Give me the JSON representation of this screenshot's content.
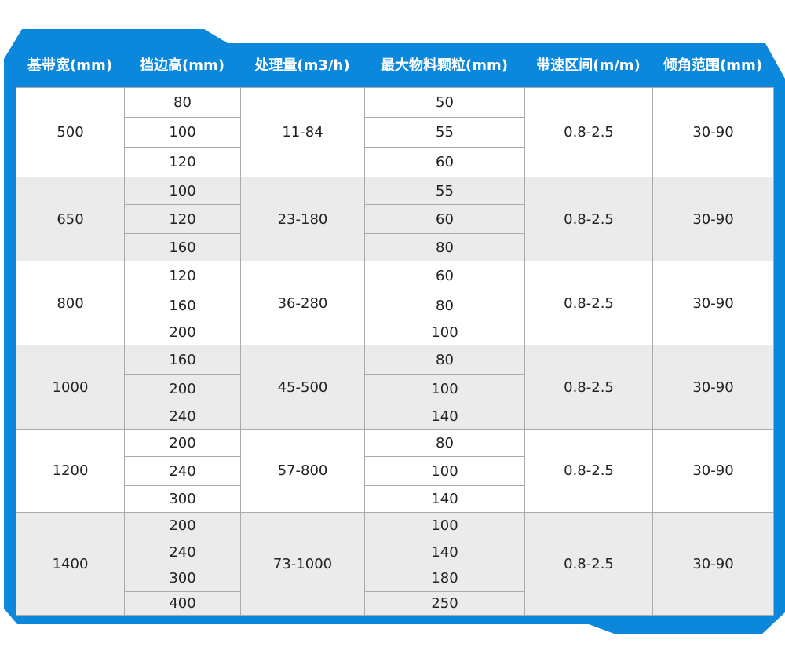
{
  "headers": [
    "基带宽(mm)",
    "挡边高(mm)",
    "处理量(m3/h)",
    "最大物料颗粒(mm)",
    "带速区间(m/m)",
    "倾角范围(mm)"
  ],
  "groups": [
    {
      "width": "500",
      "edge": [
        "80",
        "100",
        "120"
      ],
      "capacity": "11-84",
      "particle": [
        "50",
        "55",
        "60"
      ],
      "speed": "0.8-2.5",
      "angle": "30-90"
    },
    {
      "width": "650",
      "edge": [
        "100",
        "120",
        "160"
      ],
      "capacity": "23-180",
      "particle": [
        "55",
        "60",
        "80"
      ],
      "speed": "0.8-2.5",
      "angle": "30-90"
    },
    {
      "width": "800",
      "edge": [
        "120",
        "160",
        "200"
      ],
      "capacity": "36-280",
      "particle": [
        "60",
        "80",
        "100"
      ],
      "speed": "0.8-2.5",
      "angle": "30-90"
    },
    {
      "width": "1000",
      "edge": [
        "160",
        "200",
        "240"
      ],
      "capacity": "45-500",
      "particle": [
        "80",
        "100",
        "140"
      ],
      "speed": "0.8-2.5",
      "angle": "30-90"
    },
    {
      "width": "1200",
      "edge": [
        "200",
        "240",
        "300"
      ],
      "capacity": "57-800",
      "particle": [
        "80",
        "100",
        "140"
      ],
      "speed": "0.8-2.5",
      "angle": "30-90"
    },
    {
      "width": "1400",
      "edge": [
        "200",
        "240",
        "300",
        "400"
      ],
      "capacity": "73-1000",
      "particle": [
        "100",
        "140",
        "180",
        "250"
      ],
      "speed": "0.8-2.5",
      "angle": "30-90"
    }
  ],
  "colors": {
    "frame": "#0b88db",
    "row_alt": "#ebebeb",
    "border": "#aaaaaa"
  }
}
